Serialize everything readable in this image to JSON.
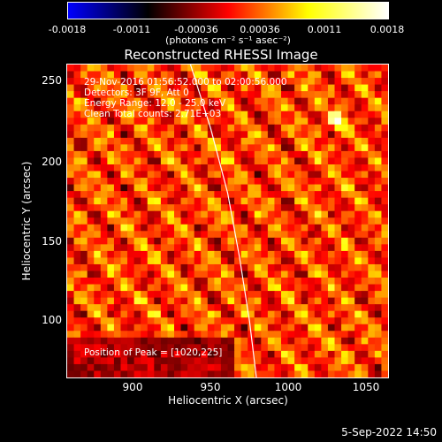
{
  "colorbar": {
    "ticks": [
      "-0.0018",
      "-0.0011",
      "-0.00036",
      "0.00036",
      "0.0011",
      "0.0018"
    ],
    "unit": "(photons cm⁻² s⁻¹ asec⁻²)",
    "range": [
      -0.0018,
      0.0018
    ]
  },
  "info": {
    "line1": "29-Nov-2016 01:56:52.000 to 02:00:56.000",
    "line2": "Detectors: 3F 9F, Att 0",
    "line3": "Energy Range: 12.0 - 25.0 keV",
    "line4": "Clean     Total counts: 2.71E+03"
  },
  "peak_label": "Position of Peak = [1020,225]",
  "timestamp": "5-Sep-2022 14:50",
  "chart_data": {
    "type": "heatmap",
    "title": "Reconstructed RHESSI Image",
    "xlabel": "Heliocentric X (arcsec)",
    "ylabel": "Heliocentric Y (arcsec)",
    "xlim": [
      860,
      1050
    ],
    "ylim": [
      65,
      260
    ],
    "x_ticks": [
      "900",
      "950",
      "1000",
      "1050"
    ],
    "y_ticks": [
      "100",
      "150",
      "200",
      "250"
    ],
    "peak": [
      1020,
      225
    ],
    "limb": [
      [
        933,
        260
      ],
      [
        945,
        220
      ],
      [
        955,
        180
      ],
      [
        962,
        140
      ],
      [
        968,
        100
      ],
      [
        972,
        65
      ]
    ],
    "colormap": [
      "#0000ff",
      "#000000",
      "#ff0000",
      "#ffff00",
      "#ffffff"
    ]
  }
}
